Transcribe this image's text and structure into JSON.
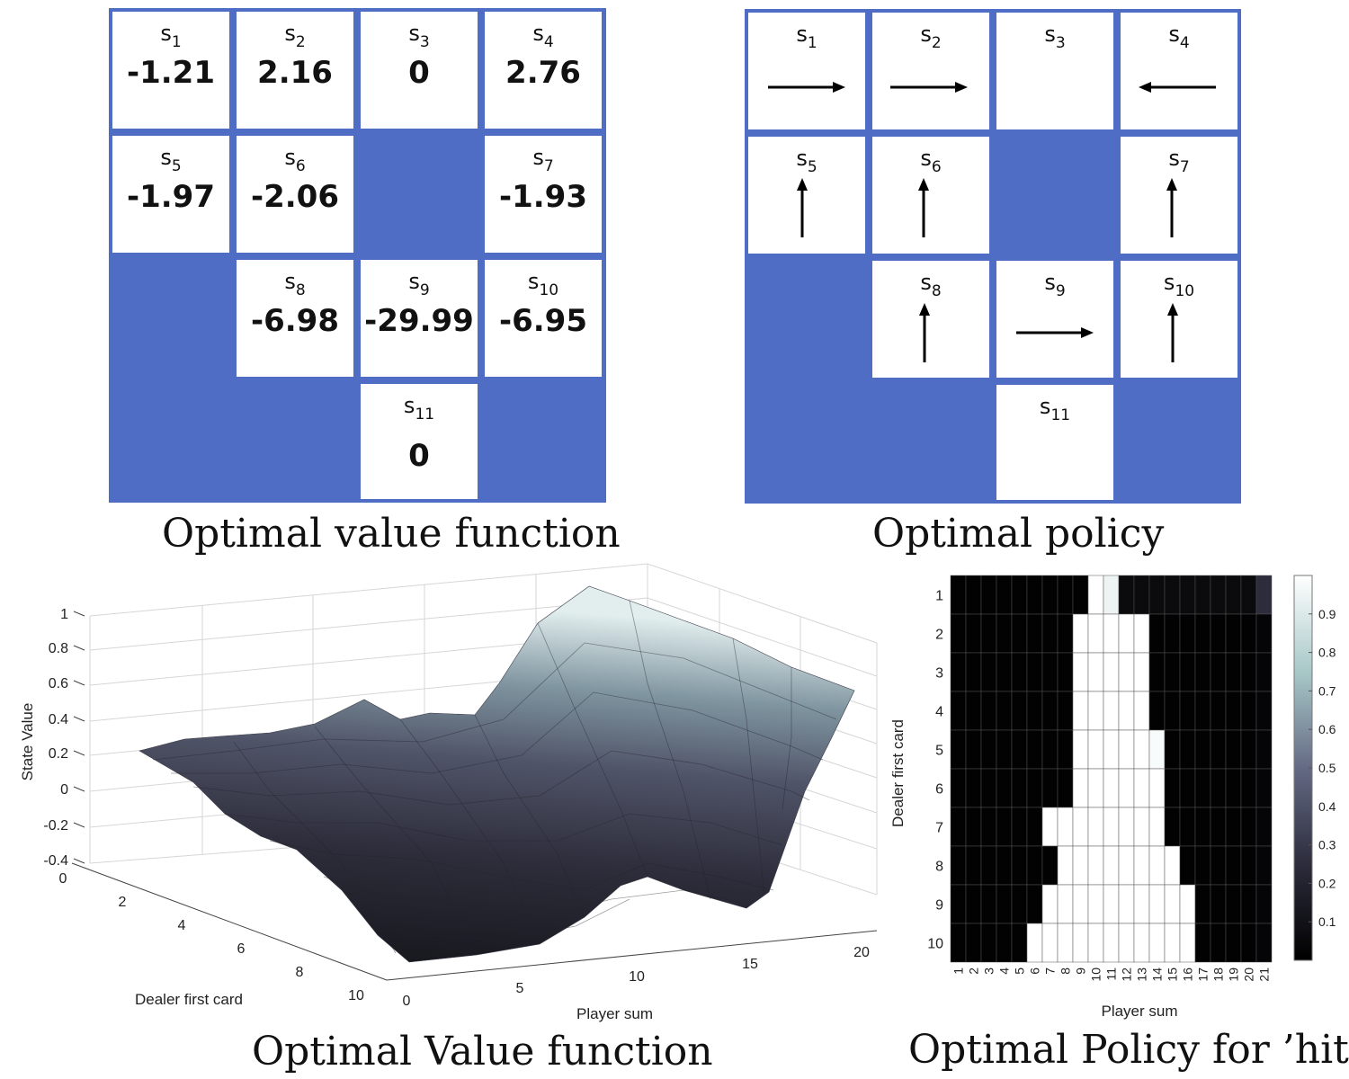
{
  "value_grid": {
    "caption": "Optimal value function",
    "cells": [
      {
        "label": "s",
        "sub": "1",
        "value": "-1.21"
      },
      {
        "label": "s",
        "sub": "2",
        "value": "2.16"
      },
      {
        "label": "s",
        "sub": "3",
        "value": "0"
      },
      {
        "label": "s",
        "sub": "4",
        "value": "2.76"
      },
      {
        "label": "s",
        "sub": "5",
        "value": "-1.97"
      },
      {
        "label": "s",
        "sub": "6",
        "value": "-2.06"
      },
      {
        "label": "s",
        "sub": "7",
        "value": "-1.93"
      },
      {
        "label": "s",
        "sub": "8",
        "value": "-6.98"
      },
      {
        "label": "s",
        "sub": "9",
        "value": "-29.99"
      },
      {
        "label": "s",
        "sub": "10",
        "value": "-6.95"
      },
      {
        "label": "s",
        "sub": "11",
        "value": "0"
      }
    ]
  },
  "policy_grid": {
    "caption": "Optimal  policy",
    "cells": [
      {
        "label": "s",
        "sub": "1",
        "action": "right"
      },
      {
        "label": "s",
        "sub": "2",
        "action": "right"
      },
      {
        "label": "s",
        "sub": "3",
        "action": "none"
      },
      {
        "label": "s",
        "sub": "4",
        "action": "left"
      },
      {
        "label": "s",
        "sub": "5",
        "action": "up"
      },
      {
        "label": "s",
        "sub": "6",
        "action": "up"
      },
      {
        "label": "s",
        "sub": "7",
        "action": "up"
      },
      {
        "label": "s",
        "sub": "8",
        "action": "up"
      },
      {
        "label": "s",
        "sub": "9",
        "action": "right"
      },
      {
        "label": "s",
        "sub": "10",
        "action": "up"
      },
      {
        "label": "s",
        "sub": "11",
        "action": "none"
      }
    ]
  },
  "colors": {
    "wall": "#4f6dc5",
    "cell": "#ffffff",
    "text": "#111111"
  },
  "surface_plot": {
    "caption": "Optimal Value function",
    "zlabel": "State Value",
    "xlabel": "Player sum",
    "ylabel": "Dealer first card",
    "z_ticks": [
      "1",
      "0.8",
      "0.6",
      "0.4",
      "0.2",
      "0",
      "-0.2",
      "-0.4"
    ],
    "dealer_ticks": [
      "0",
      "2",
      "4",
      "6",
      "8",
      "10"
    ],
    "player_ticks": [
      "0",
      "5",
      "10",
      "15",
      "20"
    ]
  },
  "chart_data": {
    "type": "heatmap",
    "title": "Optimal Policy for ’hit’",
    "xlabel": "Player sum",
    "ylabel": "Dealer first card",
    "x": [
      "1",
      "2",
      "3",
      "4",
      "5",
      "6",
      "7",
      "8",
      "9",
      "10",
      "11",
      "12",
      "13",
      "14",
      "15",
      "16",
      "17",
      "18",
      "19",
      "20",
      "21"
    ],
    "y": [
      "1",
      "2",
      "3",
      "4",
      "5",
      "6",
      "7",
      "8",
      "9",
      "10"
    ],
    "colorbar_ticks": [
      "0.9",
      "0.8",
      "0.7",
      "0.6",
      "0.5",
      "0.4",
      "0.3",
      "0.2",
      "0.1"
    ],
    "values": [
      [
        0.01,
        0.01,
        0.01,
        0.01,
        0.01,
        0.01,
        0.01,
        0.01,
        0.01,
        1.0,
        0.95,
        0.06,
        0.06,
        0.06,
        0.06,
        0.06,
        0.06,
        0.06,
        0.06,
        0.06,
        0.25
      ],
      [
        0.01,
        0.01,
        0.01,
        0.01,
        0.01,
        0.01,
        0.01,
        0.01,
        1.0,
        1.0,
        1.0,
        1.0,
        1.0,
        0.01,
        0.01,
        0.01,
        0.01,
        0.01,
        0.01,
        0.01,
        0.03
      ],
      [
        0.01,
        0.01,
        0.01,
        0.01,
        0.01,
        0.01,
        0.01,
        0.01,
        1.0,
        1.0,
        1.0,
        1.0,
        1.0,
        0.01,
        0.01,
        0.01,
        0.01,
        0.01,
        0.01,
        0.01,
        0.03
      ],
      [
        0.01,
        0.01,
        0.01,
        0.01,
        0.01,
        0.01,
        0.01,
        0.01,
        1.0,
        1.0,
        1.0,
        1.0,
        1.0,
        0.01,
        0.01,
        0.01,
        0.01,
        0.01,
        0.01,
        0.01,
        0.03
      ],
      [
        0.01,
        0.01,
        0.01,
        0.01,
        0.01,
        0.01,
        0.01,
        0.01,
        1.0,
        1.0,
        1.0,
        1.0,
        1.0,
        0.98,
        0.01,
        0.01,
        0.01,
        0.01,
        0.01,
        0.01,
        0.03
      ],
      [
        0.01,
        0.01,
        0.01,
        0.01,
        0.01,
        0.01,
        0.01,
        0.01,
        1.0,
        1.0,
        1.0,
        1.0,
        1.0,
        1.0,
        0.01,
        0.01,
        0.01,
        0.01,
        0.01,
        0.01,
        0.03
      ],
      [
        0.01,
        0.01,
        0.01,
        0.01,
        0.01,
        0.01,
        1.0,
        1.0,
        1.0,
        1.0,
        1.0,
        1.0,
        1.0,
        1.0,
        0.01,
        0.01,
        0.01,
        0.01,
        0.01,
        0.01,
        0.03
      ],
      [
        0.01,
        0.01,
        0.01,
        0.01,
        0.01,
        0.01,
        0.01,
        1.0,
        1.0,
        1.0,
        1.0,
        1.0,
        1.0,
        1.0,
        1.0,
        0.01,
        0.01,
        0.01,
        0.01,
        0.01,
        0.03
      ],
      [
        0.01,
        0.01,
        0.01,
        0.01,
        0.01,
        0.01,
        1.0,
        1.0,
        1.0,
        1.0,
        1.0,
        1.0,
        1.0,
        1.0,
        1.0,
        1.0,
        0.01,
        0.01,
        0.01,
        0.01,
        0.03
      ],
      [
        0.01,
        0.01,
        0.01,
        0.01,
        0.01,
        1.0,
        1.0,
        1.0,
        1.0,
        1.0,
        1.0,
        1.0,
        1.0,
        1.0,
        1.0,
        1.0,
        0.01,
        0.01,
        0.01,
        0.01,
        0.03
      ]
    ]
  }
}
